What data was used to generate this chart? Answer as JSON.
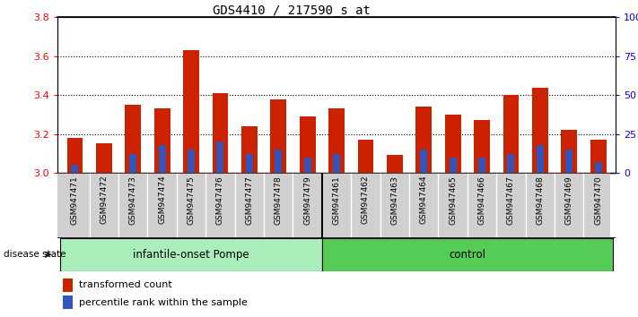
{
  "title": "GDS4410 / 217590_s_at",
  "samples": [
    "GSM947471",
    "GSM947472",
    "GSM947473",
    "GSM947474",
    "GSM947475",
    "GSM947476",
    "GSM947477",
    "GSM947478",
    "GSM947479",
    "GSM947461",
    "GSM947462",
    "GSM947463",
    "GSM947464",
    "GSM947465",
    "GSM947466",
    "GSM947467",
    "GSM947468",
    "GSM947469",
    "GSM947470"
  ],
  "red_values": [
    3.18,
    3.15,
    3.35,
    3.33,
    3.63,
    3.41,
    3.24,
    3.38,
    3.29,
    3.33,
    3.17,
    3.09,
    3.34,
    3.3,
    3.27,
    3.4,
    3.44,
    3.22,
    3.17
  ],
  "blue_percentiles": [
    5,
    0,
    12,
    18,
    15,
    20,
    12,
    15,
    10,
    12,
    0,
    0,
    15,
    10,
    10,
    12,
    18,
    15,
    7
  ],
  "base": 3.0,
  "ylim_left": [
    3.0,
    3.8
  ],
  "ylim_right": [
    0,
    100
  ],
  "yticks_left": [
    3.0,
    3.2,
    3.4,
    3.6,
    3.8
  ],
  "yticks_right": [
    0,
    25,
    50,
    75,
    100
  ],
  "ytick_right_labels": [
    "0",
    "25",
    "50",
    "75",
    "100%"
  ],
  "group1_label": "infantile-onset Pompe",
  "group2_label": "control",
  "group1_count": 9,
  "group2_count": 10,
  "bar_color": "#cc2200",
  "blue_color": "#3355bb",
  "bg_color_plot": "#ffffff",
  "bg_color_xticklabels": "#d0d0d0",
  "group1_color": "#aaeebb",
  "group2_color": "#55cc55",
  "legend_label1": "transformed count",
  "legend_label2": "percentile rank within the sample",
  "disease_state_label": "disease state",
  "bar_width": 0.55
}
